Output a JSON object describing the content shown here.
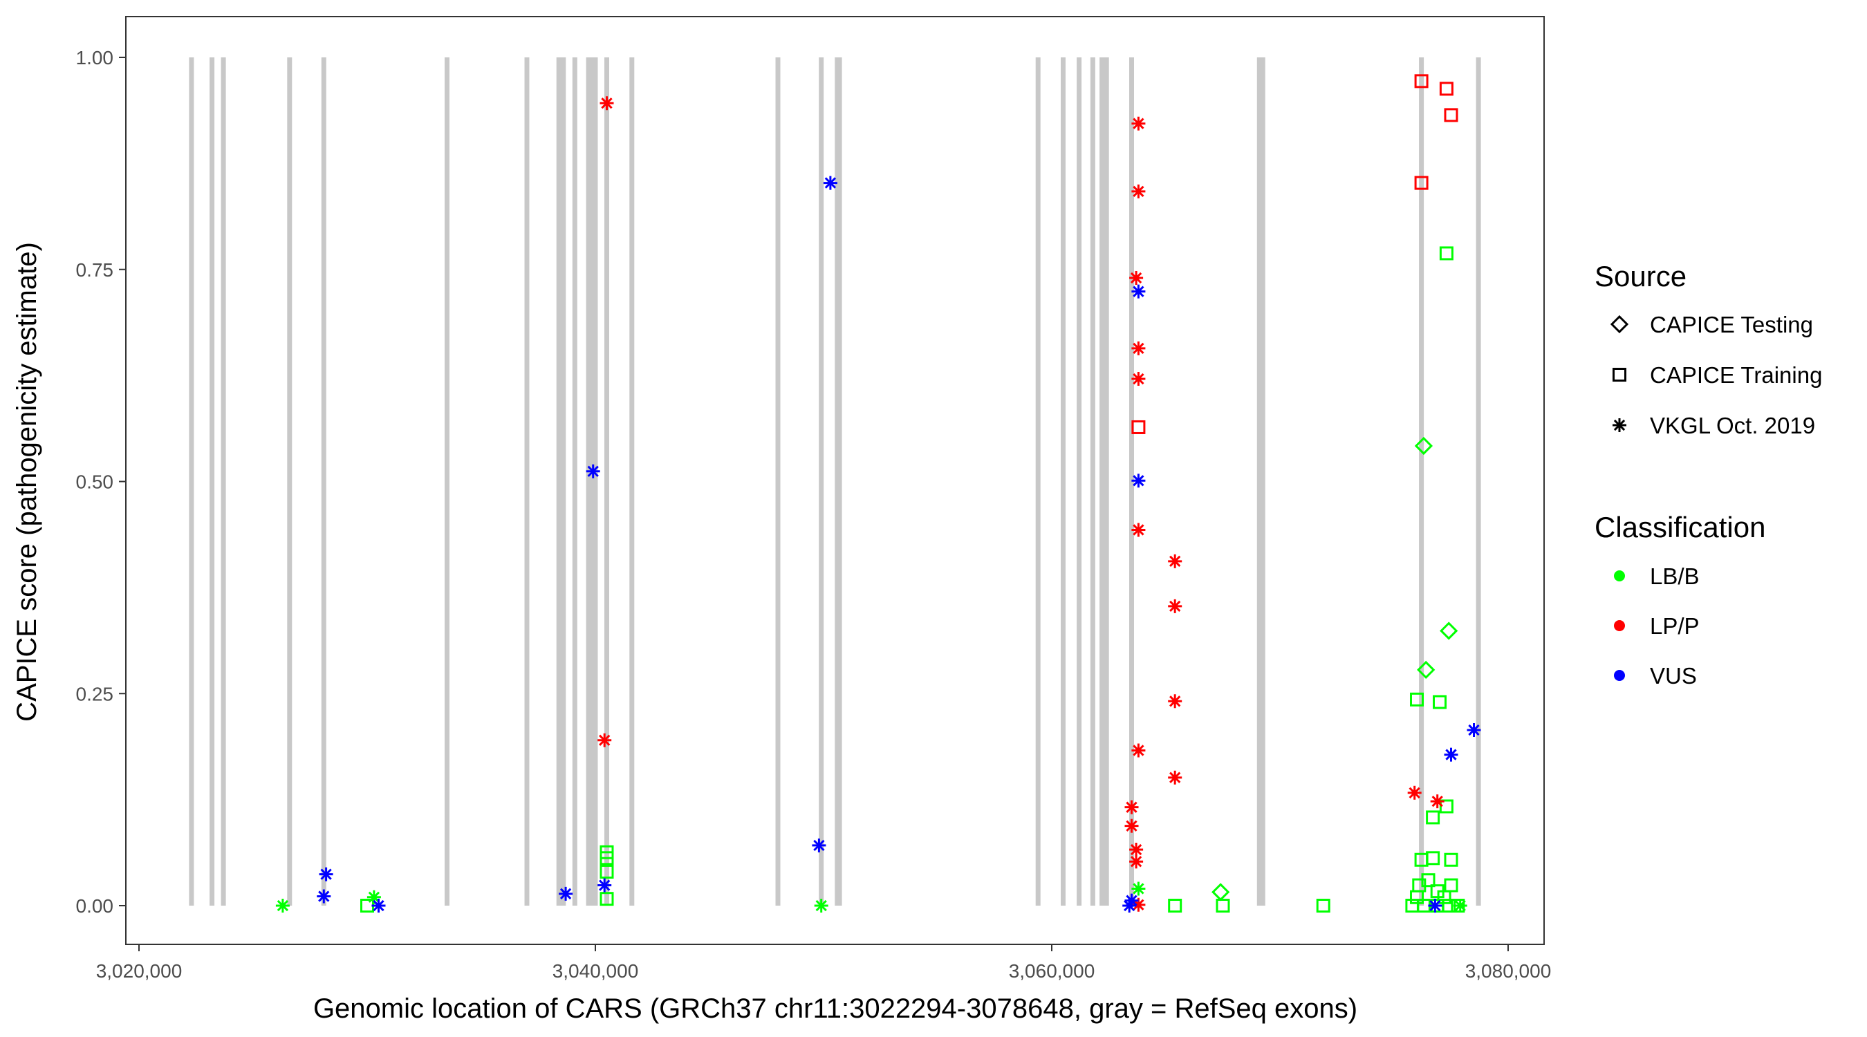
{
  "chart_data": {
    "type": "scatter",
    "xlabel": "Genomic location of CARS (GRCh37 chr11:3022294-3078648, gray = RefSeq exons)",
    "ylabel": "CAPICE score (pathogenicity estimate)",
    "xlim": [
      3019500,
      3081000
    ],
    "ylim": [
      -0.045,
      1.05
    ],
    "x_ticks": [
      3020000,
      3040000,
      3060000,
      3080000
    ],
    "x_tick_labels": [
      "3,020,000",
      "3,040,000",
      "3,060,000",
      "3,080,000"
    ],
    "y_ticks": [
      0,
      0.25,
      0.5,
      0.75,
      1.0
    ],
    "y_tick_labels": [
      "0.00",
      "0.25",
      "0.50",
      "0.75",
      "1.00"
    ],
    "grid": false,
    "exon_color": "#c8c8c8",
    "exons": [
      3022300,
      3023200,
      3023700,
      3026600,
      3028100,
      3033500,
      3037000,
      3038400,
      3038600,
      3039100,
      3039700,
      3039800,
      3040000,
      3040500,
      3041600,
      3048000,
      3049900,
      3050600,
      3050700,
      3059400,
      3060500,
      3061200,
      3061800,
      3062200,
      3062400,
      3063500,
      3069100,
      3069250,
      3076200,
      3078700
    ],
    "legend": {
      "position": "right",
      "source_title": "Source",
      "source_items": [
        {
          "label": "CAPICE Testing",
          "shape": "diamond"
        },
        {
          "label": "CAPICE Training",
          "shape": "square"
        },
        {
          "label": "VKGL Oct. 2019",
          "shape": "asterisk"
        }
      ],
      "class_title": "Classification",
      "class_items": [
        {
          "label": "LB/B",
          "color": "#00ff00"
        },
        {
          "label": "LP/P",
          "color": "#ff0000"
        },
        {
          "label": "VUS",
          "color": "#0000ff"
        }
      ]
    },
    "series": [
      {
        "source": "VKGL Oct. 2019",
        "class": "LB/B",
        "points": [
          [
            3026300,
            0
          ],
          [
            3030300,
            0.01
          ],
          [
            3049900,
            0
          ],
          [
            3063800,
            0.02
          ],
          [
            3077900,
            0
          ]
        ]
      },
      {
        "source": "CAPICE Training",
        "class": "LB/B",
        "points": [
          [
            3030000,
            0
          ],
          [
            3040500,
            0.063
          ],
          [
            3040500,
            0.056
          ],
          [
            3040500,
            0.04
          ],
          [
            3040500,
            0.008
          ],
          [
            3065400,
            0
          ],
          [
            3067500,
            0
          ],
          [
            3071900,
            0
          ],
          [
            3077300,
            0.769
          ],
          [
            3076000,
            0.243
          ],
          [
            3077000,
            0.24
          ],
          [
            3076700,
            0.104
          ],
          [
            3077300,
            0.117
          ],
          [
            3076200,
            0.054
          ],
          [
            3076700,
            0.056
          ],
          [
            3077500,
            0.054
          ],
          [
            3076100,
            0.024
          ],
          [
            3076900,
            0.017
          ],
          [
            3077500,
            0.024
          ],
          [
            3075800,
            0
          ],
          [
            3076300,
            0
          ],
          [
            3076900,
            0
          ],
          [
            3077400,
            0
          ],
          [
            3077800,
            0
          ],
          [
            3076000,
            0.01
          ],
          [
            3076500,
            0.03
          ],
          [
            3077200,
            0.01
          ]
        ]
      },
      {
        "source": "CAPICE Testing",
        "class": "LB/B",
        "points": [
          [
            3076300,
            0.542
          ],
          [
            3077400,
            0.324
          ],
          [
            3076400,
            0.278
          ],
          [
            3067400,
            0.016
          ]
        ]
      },
      {
        "source": "CAPICE Training",
        "class": "LP/P",
        "points": [
          [
            3076200,
            0.972
          ],
          [
            3077300,
            0.963
          ],
          [
            3077500,
            0.932
          ],
          [
            3076200,
            0.852
          ],
          [
            3063800,
            0.564
          ]
        ]
      },
      {
        "source": "VKGL Oct. 2019",
        "class": "LP/P",
        "points": [
          [
            3040500,
            0.946
          ],
          [
            3063800,
            0.922
          ],
          [
            3063800,
            0.842
          ],
          [
            3063700,
            0.74
          ],
          [
            3063800,
            0.657
          ],
          [
            3063800,
            0.621
          ],
          [
            3063800,
            0.443
          ],
          [
            3065400,
            0.406
          ],
          [
            3065400,
            0.353
          ],
          [
            3065400,
            0.241
          ],
          [
            3063800,
            0.183
          ],
          [
            3065400,
            0.151
          ],
          [
            3040400,
            0.195
          ],
          [
            3063500,
            0.116
          ],
          [
            3063500,
            0.094
          ],
          [
            3063700,
            0.066
          ],
          [
            3063700,
            0.052
          ],
          [
            3063800,
            0.001
          ],
          [
            3075900,
            0.133
          ],
          [
            3076900,
            0.123
          ]
        ]
      },
      {
        "source": "VKGL Oct. 2019",
        "class": "VUS",
        "points": [
          [
            3050300,
            0.852
          ],
          [
            3063800,
            0.724
          ],
          [
            3039900,
            0.512
          ],
          [
            3063800,
            0.501
          ],
          [
            3078500,
            0.207
          ],
          [
            3077500,
            0.178
          ],
          [
            3049800,
            0.071
          ],
          [
            3028200,
            0.037
          ],
          [
            3028100,
            0.011
          ],
          [
            3030500,
            0
          ],
          [
            3038700,
            0.014
          ],
          [
            3040400,
            0.024
          ],
          [
            3063400,
            0
          ],
          [
            3063500,
            0.006
          ],
          [
            3076800,
            0
          ]
        ]
      }
    ]
  }
}
